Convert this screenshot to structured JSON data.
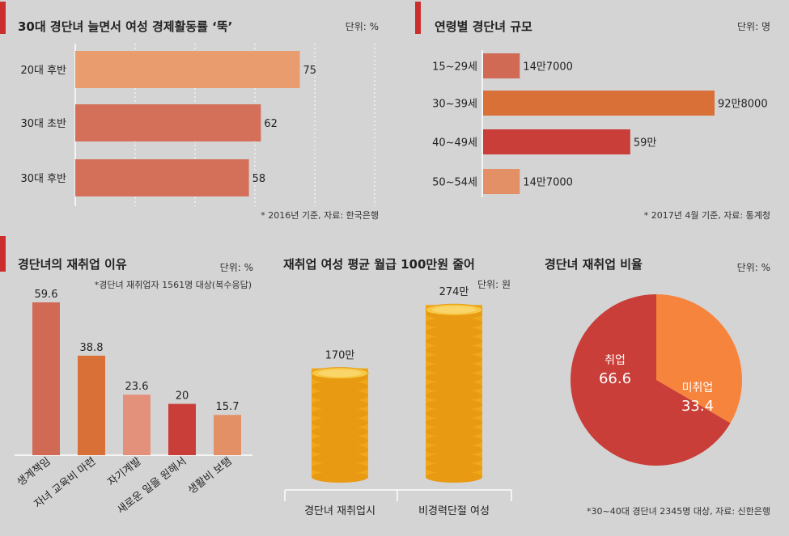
{
  "chart_data": [
    {
      "type": "bar",
      "orientation": "horizontal",
      "title": "30대 경단녀 늘면서 여성 경제활동률 ‘뚝’",
      "unit": "단위: %",
      "source": "* 2016년 기준, 자료: 한국은행",
      "categories": [
        "20대 후반",
        "30대 초반",
        "30대 후반"
      ],
      "values": [
        75,
        62,
        58
      ],
      "value_labels": [
        "75",
        "62",
        "58"
      ],
      "xlim": [
        0,
        100
      ],
      "grid": "vertical-dotted",
      "colors": [
        "#e99d6e",
        "#d4705a",
        "#d4705a"
      ]
    },
    {
      "type": "bar",
      "orientation": "horizontal",
      "title": "연령별 경단녀 규모",
      "unit": "단위: 명",
      "source": "* 2017년 4월 기준, 자료: 통계청",
      "categories": [
        "15~29세",
        "30~39세",
        "40~49세",
        "50~54세"
      ],
      "values": [
        147000,
        928000,
        590000,
        147000
      ],
      "value_labels": [
        "14만7000",
        "92만8000",
        "59만",
        "14만7000"
      ],
      "xlim": [
        0,
        1000000
      ],
      "colors": [
        "#d06a55",
        "#d97038",
        "#c93e38",
        "#e49067"
      ]
    },
    {
      "type": "bar",
      "title": "경단녀의 재취업 이유",
      "unit": "단위: %",
      "subtitle": "*경단녀 재취업자 1561명 대상(복수응답)",
      "categories": [
        "생계책임",
        "자녀 교육비 마련",
        "자기계발",
        "새로운 일을 원해서",
        "생활비 보탬"
      ],
      "values": [
        59.6,
        38.8,
        23.6,
        20,
        15.7
      ],
      "value_labels": [
        "59.6",
        "38.8",
        "23.6",
        "20",
        "15.7"
      ],
      "ylim": [
        0,
        60
      ],
      "colors": [
        "#d06a55",
        "#d97038",
        "#e4917c",
        "#c93e38",
        "#e49067"
      ]
    },
    {
      "type": "bar",
      "style": "pictograph-coin-stack",
      "title": "재취업 여성 평균 월급 100만원 줄어",
      "unit": "단위: 원",
      "categories": [
        "경단녀 재취업시",
        "비경력단절 여성"
      ],
      "values": [
        1700000,
        2740000
      ],
      "value_labels": [
        "170만",
        "274만"
      ],
      "colors": [
        "#f3b01c",
        "#f8cc52"
      ]
    },
    {
      "type": "pie",
      "title": "경단녀 재취업 비율",
      "unit": "단위: %",
      "source": "*30~40대 경단녀 2345명 대상, 자료: 신한은행",
      "slices": [
        {
          "label": "취업",
          "value": 66.6,
          "value_label": "66.6",
          "color": "#c93e38"
        },
        {
          "label": "미취업",
          "value": 33.4,
          "value_label": "33.4",
          "color": "#f6843c"
        }
      ]
    }
  ],
  "colors": {
    "accent_marker": "#cc2e2e",
    "text": "#222222",
    "axis": "#ffffff",
    "grid": "#ffffff"
  }
}
